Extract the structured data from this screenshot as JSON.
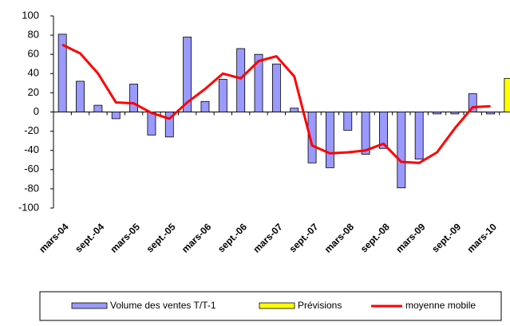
{
  "chart_data": {
    "type": "bar",
    "categories": [
      "mars-04",
      null,
      "sept.-04",
      null,
      "mars-05",
      null,
      "sept.-05",
      null,
      "mars-06",
      null,
      "sept.-06",
      null,
      "mars-07",
      null,
      "sept.-07",
      null,
      "mars-08",
      null,
      "sept.-08",
      null,
      "mars-09",
      null,
      "sept.-09",
      null,
      "mars-10",
      null
    ],
    "series": [
      {
        "name": "Volume des ventes T/T-1",
        "type": "bar",
        "color": "#9999ff",
        "values": [
          81,
          32,
          7,
          -7,
          29,
          -24,
          -26,
          78,
          11,
          34,
          66,
          60,
          50,
          4,
          -53,
          -58,
          -19,
          -44,
          -38,
          -79,
          -49,
          -2,
          -2,
          19,
          -2,
          null
        ]
      },
      {
        "name": "Prévisions",
        "type": "bar",
        "color": "#ffff00",
        "values": [
          null,
          null,
          null,
          null,
          null,
          null,
          null,
          null,
          null,
          null,
          null,
          null,
          null,
          null,
          null,
          null,
          null,
          null,
          null,
          null,
          null,
          null,
          null,
          null,
          null,
          35
        ]
      },
      {
        "name": "moyenne mobile",
        "type": "line",
        "color": "#ff0000",
        "values": [
          70,
          61,
          40,
          10,
          9,
          -1,
          -7,
          10,
          24,
          40,
          35,
          53,
          58,
          37,
          -35,
          -43,
          -42,
          -40,
          -33,
          -52,
          -53,
          -42,
          -17,
          5,
          6,
          null
        ]
      }
    ],
    "ylim": [
      -100,
      100
    ],
    "yticks": [
      -100,
      -80,
      -60,
      -40,
      -20,
      0,
      20,
      40,
      60,
      80,
      100
    ],
    "legend": "bottom"
  }
}
